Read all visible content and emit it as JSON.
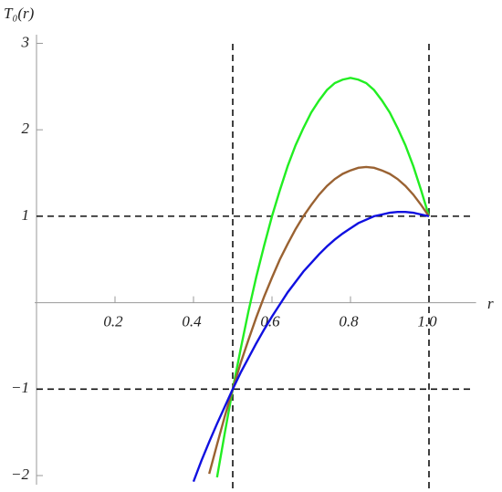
{
  "chart_data": {
    "type": "line",
    "y_label": "T₀(r)",
    "x_label": "r",
    "x": [
      0.4,
      0.42,
      0.44,
      0.46,
      0.48,
      0.5,
      0.52,
      0.54,
      0.56,
      0.58,
      0.6,
      0.62,
      0.64,
      0.66,
      0.68,
      0.7,
      0.72,
      0.74,
      0.76,
      0.78,
      0.8,
      0.82,
      0.84,
      0.86,
      0.88,
      0.9,
      0.92,
      0.94,
      0.96,
      0.98,
      1.0
    ],
    "series": [
      {
        "name": "green",
        "color": "#22ee22",
        "values": [
          null,
          null,
          null,
          -2.02,
          -1.5,
          -1.0,
          -0.54,
          -0.1,
          0.3,
          0.66,
          1.0,
          1.3,
          1.58,
          1.82,
          2.02,
          2.2,
          2.34,
          2.46,
          2.54,
          2.58,
          2.6,
          2.58,
          2.54,
          2.46,
          2.34,
          2.2,
          2.02,
          1.82,
          1.58,
          1.3,
          1.0
        ]
      },
      {
        "name": "brown",
        "color": "#9a6232",
        "values": [
          null,
          null,
          -1.98,
          -1.64,
          -1.31,
          -1.0,
          -0.7,
          -0.43,
          -0.17,
          0.07,
          0.29,
          0.5,
          0.68,
          0.85,
          1.0,
          1.13,
          1.25,
          1.35,
          1.43,
          1.49,
          1.53,
          1.56,
          1.57,
          1.56,
          1.53,
          1.49,
          1.43,
          1.35,
          1.25,
          1.13,
          1.0
        ]
      },
      {
        "name": "blue",
        "color": "#1010e0",
        "values": [
          -2.07,
          -1.83,
          -1.61,
          -1.4,
          -1.2,
          -1.0,
          -0.81,
          -0.64,
          -0.47,
          -0.31,
          -0.16,
          -0.02,
          0.12,
          0.24,
          0.36,
          0.46,
          0.56,
          0.65,
          0.73,
          0.8,
          0.86,
          0.92,
          0.96,
          1.0,
          1.02,
          1.04,
          1.05,
          1.05,
          1.04,
          1.02,
          1.0
        ]
      }
    ],
    "xlim": [
      0,
      1.12
    ],
    "ylim": [
      -2,
      3.1
    ],
    "xticks": [
      0.2,
      0.4,
      0.6,
      0.8,
      {
        "value": 1,
        "label": "1.0"
      }
    ],
    "yticks": [
      {
        "value": -2,
        "label": "−2"
      },
      {
        "value": -1,
        "label": "−1"
      },
      1,
      2,
      3
    ],
    "reference_lines": {
      "x": [
        0.5,
        1
      ],
      "y": [
        -1,
        1
      ]
    }
  }
}
